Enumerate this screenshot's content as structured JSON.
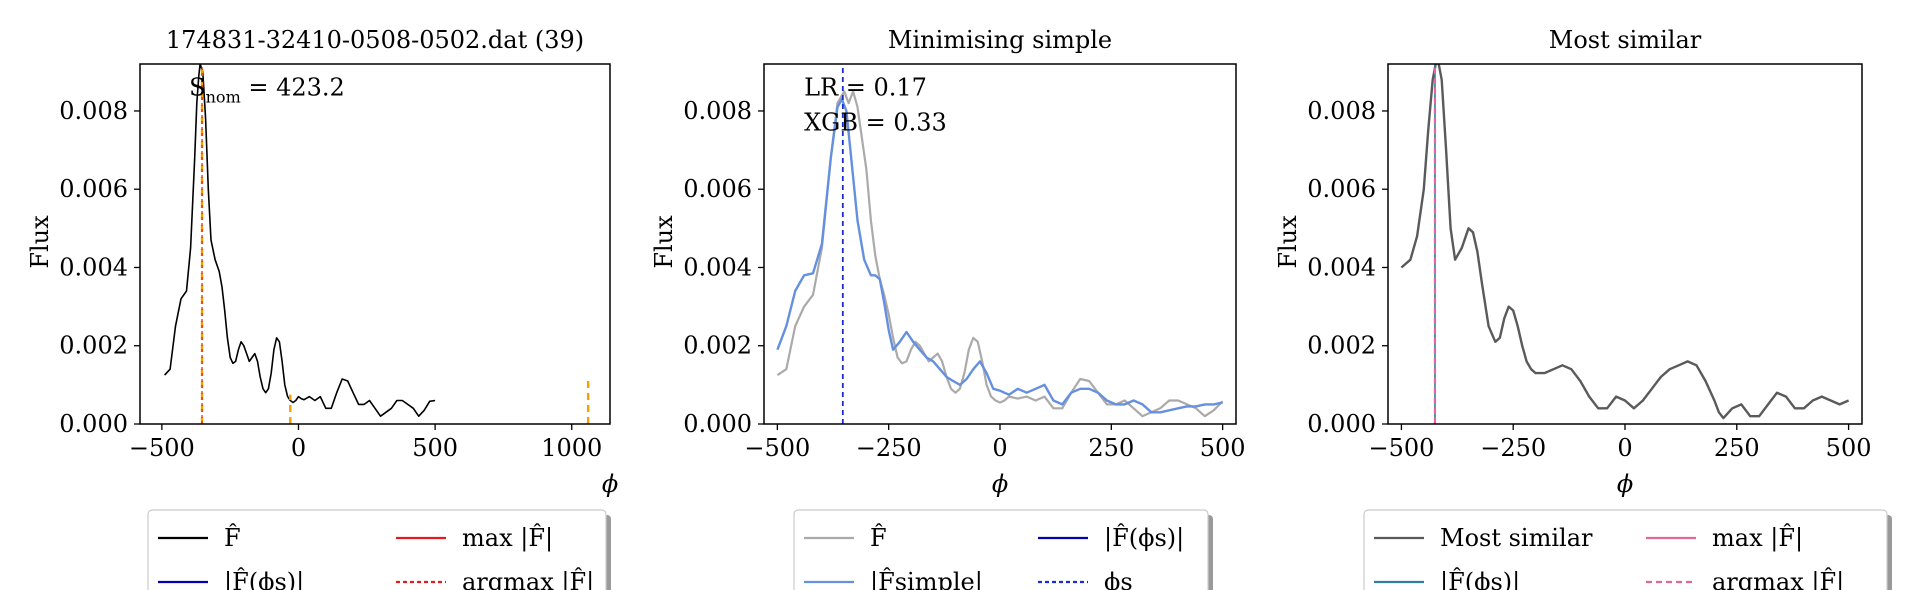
{
  "colors": {
    "black": "#000000",
    "orange": "#f5a000",
    "red": "#e41a1c",
    "navy": "#0000b0",
    "blue_dashed": "#1a2bd6",
    "gray": "#aaaaaa",
    "cornflower": "#6590e0",
    "dark_gray": "#5a5a5a",
    "pink": "#e0679a",
    "teal": "#2f7f9f"
  },
  "chart_data": [
    {
      "type": "line",
      "title": "174831-32410-0508-0502.dat (39)",
      "xlabel": "ϕ",
      "ylabel": "Flux",
      "xlim": [
        -580,
        1140
      ],
      "ylim": [
        0,
        0.0092
      ],
      "xticks": [
        -500,
        0,
        500,
        1000
      ],
      "xtick_labels": [
        "−500",
        "0",
        "500",
        "1000"
      ],
      "yticks": [
        0,
        0.002,
        0.004,
        0.006,
        0.008
      ],
      "ytick_labels": [
        "0.000",
        "0.002",
        "0.004",
        "0.006",
        "0.008"
      ],
      "annotations": [
        {
          "main": "S",
          "sub": "nom",
          "rest": " = 423.2",
          "x": -400,
          "y": 0.0086
        }
      ],
      "series": [
        {
          "name": "F̂",
          "color": "black",
          "width": 1.6,
          "x": [
            -490,
            -470,
            -450,
            -430,
            -410,
            -395,
            -380,
            -372,
            -365,
            -360,
            -350,
            -340,
            -330,
            -320,
            -305,
            -290,
            -280,
            -270,
            -260,
            -250,
            -240,
            -230,
            -220,
            -210,
            -200,
            -190,
            -180,
            -170,
            -160,
            -150,
            -140,
            -130,
            -120,
            -110,
            -100,
            -90,
            -80,
            -70,
            -60,
            -50,
            -40,
            -30,
            -20,
            -10,
            0,
            10,
            20,
            40,
            60,
            80,
            100,
            120,
            140,
            160,
            180,
            200,
            220,
            240,
            260,
            280,
            300,
            320,
            340,
            360,
            380,
            400,
            420,
            440,
            460,
            480,
            500
          ],
          "y": [
            0.00125,
            0.0014,
            0.0025,
            0.0032,
            0.0034,
            0.0045,
            0.0068,
            0.0082,
            0.0089,
            0.0092,
            0.009,
            0.0078,
            0.006,
            0.0047,
            0.0042,
            0.0039,
            0.0035,
            0.0029,
            0.0022,
            0.0017,
            0.00155,
            0.0016,
            0.0019,
            0.0021,
            0.002,
            0.0018,
            0.0016,
            0.0017,
            0.0018,
            0.0016,
            0.0012,
            0.0009,
            0.0008,
            0.0009,
            0.0013,
            0.0019,
            0.0022,
            0.0021,
            0.0016,
            0.001,
            0.0007,
            0.0006,
            0.00055,
            0.0006,
            0.0007,
            0.00065,
            0.00062,
            0.0007,
            0.0006,
            0.0007,
            0.0004,
            0.0004,
            0.0008,
            0.00115,
            0.0011,
            0.0008,
            0.0005,
            0.0005,
            0.0006,
            0.0004,
            0.0002,
            0.0003,
            0.0004,
            0.0006,
            0.0006,
            0.0005,
            0.0004,
            0.0002,
            0.00035,
            0.00058,
            0.0006
          ]
        }
      ],
      "vlines": [
        {
          "x": -353,
          "y0": 0,
          "y1": 0.0092,
          "color": "orange",
          "dash": "7,5",
          "width": 2.4
        },
        {
          "x": -353,
          "y0": 0,
          "y1": 0.0092,
          "color": "red",
          "dash": "3,3",
          "width": 1.2
        },
        {
          "x": -30,
          "y0": 0,
          "y1": 0.00075,
          "color": "orange",
          "dash": "7,5",
          "width": 2.4
        },
        {
          "x": 1060,
          "y0": 0,
          "y1": 0.0011,
          "color": "orange",
          "dash": "7,5",
          "width": 2.4
        }
      ],
      "legend": {
        "position": "below",
        "entries": [
          {
            "label": "F̂",
            "color": "black",
            "dash": ""
          },
          {
            "label": "|F̂(ϕs)|",
            "color": "navy",
            "dash": ""
          },
          {
            "label": "max |F̂|",
            "color": "red",
            "dash": ""
          },
          {
            "label": "argmax |F̂|",
            "color": "red",
            "dash": "4,3"
          }
        ]
      }
    },
    {
      "type": "line",
      "title": "Minimising simple",
      "xlabel": "ϕ",
      "ylabel": "Flux",
      "xlim": [
        -530,
        530
      ],
      "ylim": [
        0,
        0.0092
      ],
      "xticks": [
        -500,
        -250,
        0,
        250,
        500
      ],
      "xtick_labels": [
        "−500",
        "−250",
        "0",
        "250",
        "500"
      ],
      "yticks": [
        0,
        0.002,
        0.004,
        0.006,
        0.008
      ],
      "ytick_labels": [
        "0.000",
        "0.002",
        "0.004",
        "0.006",
        "0.008"
      ],
      "annotations": [
        {
          "main": "LR = 0.17",
          "sub": "",
          "rest": "",
          "x": -440,
          "y": 0.0086
        },
        {
          "main": "XGB = 0.33",
          "sub": "",
          "rest": "",
          "x": -440,
          "y": 0.0077
        }
      ],
      "series": [
        {
          "name": "F̂",
          "color": "gray",
          "width": 2.2,
          "x": [
            -500,
            -480,
            -460,
            -440,
            -420,
            -400,
            -380,
            -365,
            -350,
            -340,
            -330,
            -320,
            -300,
            -290,
            -280,
            -270,
            -260,
            -250,
            -240,
            -230,
            -220,
            -210,
            -200,
            -190,
            -180,
            -170,
            -160,
            -150,
            -140,
            -130,
            -120,
            -110,
            -100,
            -90,
            -80,
            -70,
            -60,
            -50,
            -40,
            -30,
            -20,
            -10,
            0,
            10,
            20,
            40,
            60,
            80,
            100,
            120,
            140,
            160,
            180,
            200,
            220,
            240,
            260,
            280,
            300,
            320,
            340,
            360,
            380,
            400,
            420,
            440,
            460,
            480,
            500
          ],
          "y": [
            0.00125,
            0.0014,
            0.0025,
            0.003,
            0.0033,
            0.0045,
            0.0068,
            0.0082,
            0.0085,
            0.0082,
            0.0085,
            0.0081,
            0.0065,
            0.0052,
            0.0043,
            0.0037,
            0.0033,
            0.0028,
            0.0022,
            0.0017,
            0.00155,
            0.0016,
            0.0019,
            0.0021,
            0.002,
            0.0018,
            0.0016,
            0.0017,
            0.0018,
            0.0016,
            0.0012,
            0.0009,
            0.0008,
            0.0009,
            0.0013,
            0.0019,
            0.0022,
            0.0021,
            0.0016,
            0.001,
            0.0007,
            0.0006,
            0.00055,
            0.0006,
            0.0007,
            0.00065,
            0.0007,
            0.0006,
            0.0007,
            0.0004,
            0.0004,
            0.0008,
            0.00115,
            0.0011,
            0.0008,
            0.0005,
            0.0005,
            0.0006,
            0.0004,
            0.0002,
            0.0003,
            0.0004,
            0.0006,
            0.0006,
            0.0005,
            0.0004,
            0.0002,
            0.00035,
            0.00058
          ]
        },
        {
          "name": "|F̂simple|",
          "color": "cornflower",
          "width": 2.4,
          "x": [
            -500,
            -480,
            -460,
            -440,
            -420,
            -400,
            -380,
            -365,
            -355,
            -345,
            -335,
            -320,
            -305,
            -290,
            -280,
            -270,
            -260,
            -250,
            -240,
            -225,
            -210,
            -195,
            -180,
            -165,
            -150,
            -135,
            -120,
            -105,
            -90,
            -75,
            -60,
            -45,
            -30,
            -15,
            0,
            20,
            40,
            60,
            80,
            100,
            120,
            140,
            160,
            180,
            200,
            220,
            240,
            260,
            280,
            300,
            320,
            340,
            360,
            380,
            400,
            420,
            440,
            460,
            480,
            500
          ],
          "y": [
            0.0019,
            0.0025,
            0.0034,
            0.0038,
            0.00385,
            0.0046,
            0.0068,
            0.0081,
            0.0083,
            0.008,
            0.0069,
            0.0052,
            0.0042,
            0.0038,
            0.0038,
            0.0037,
            0.0031,
            0.0024,
            0.0019,
            0.0021,
            0.00235,
            0.0021,
            0.0019,
            0.0017,
            0.0016,
            0.0014,
            0.0012,
            0.0011,
            0.001,
            0.00115,
            0.0014,
            0.0016,
            0.0013,
            0.0009,
            0.00085,
            0.00075,
            0.0009,
            0.0008,
            0.0009,
            0.001,
            0.0006,
            0.0005,
            0.0008,
            0.0009,
            0.0009,
            0.0008,
            0.0006,
            0.0005,
            0.0005,
            0.0006,
            0.0005,
            0.0003,
            0.0003,
            0.00035,
            0.0004,
            0.00045,
            0.00045,
            0.0005,
            0.0005,
            0.00055
          ]
        }
      ],
      "vlines": [
        {
          "x": -353,
          "y0": 0,
          "y1": 0.0092,
          "color": "blue_dashed",
          "dash": "5,4",
          "width": 1.8
        }
      ],
      "legend": {
        "position": "below",
        "entries": [
          {
            "label": "F̂",
            "color": "gray",
            "dash": ""
          },
          {
            "label": "|F̂simple|",
            "color": "cornflower",
            "dash": ""
          },
          {
            "label": "|F̂(ϕs)|",
            "color": "navy",
            "dash": ""
          },
          {
            "label": "ϕs",
            "color": "blue_dashed",
            "dash": "4,3"
          }
        ]
      }
    },
    {
      "type": "line",
      "title": "Most similar",
      "xlabel": "ϕ",
      "ylabel": "Flux",
      "xlim": [
        -530,
        530
      ],
      "ylim": [
        0,
        0.0092
      ],
      "xticks": [
        -500,
        -250,
        0,
        250,
        500
      ],
      "xtick_labels": [
        "−500",
        "−250",
        "0",
        "250",
        "500"
      ],
      "yticks": [
        0,
        0.002,
        0.004,
        0.006,
        0.008
      ],
      "ytick_labels": [
        "0.000",
        "0.002",
        "0.004",
        "0.006",
        "0.008"
      ],
      "annotations": [],
      "series": [
        {
          "name": "Most similar",
          "color": "dark_gray",
          "width": 2.4,
          "x": [
            -500,
            -480,
            -465,
            -450,
            -440,
            -430,
            -420,
            -410,
            -400,
            -390,
            -380,
            -365,
            -350,
            -340,
            -330,
            -320,
            -305,
            -290,
            -280,
            -270,
            -260,
            -250,
            -240,
            -230,
            -220,
            -210,
            -200,
            -180,
            -160,
            -140,
            -120,
            -100,
            -80,
            -60,
            -40,
            -20,
            0,
            20,
            40,
            60,
            80,
            100,
            120,
            140,
            160,
            180,
            200,
            210,
            220,
            240,
            260,
            280,
            300,
            320,
            340,
            360,
            380,
            400,
            420,
            440,
            460,
            480,
            500
          ],
          "y": [
            0.004,
            0.0042,
            0.0048,
            0.006,
            0.0075,
            0.0088,
            0.0094,
            0.0088,
            0.007,
            0.005,
            0.0042,
            0.0045,
            0.005,
            0.0049,
            0.0044,
            0.0036,
            0.0025,
            0.0021,
            0.0022,
            0.0027,
            0.003,
            0.0029,
            0.0025,
            0.002,
            0.0016,
            0.0014,
            0.0013,
            0.0013,
            0.0014,
            0.0015,
            0.0014,
            0.0011,
            0.0007,
            0.0004,
            0.0004,
            0.0007,
            0.0006,
            0.0004,
            0.0006,
            0.0009,
            0.0012,
            0.0014,
            0.0015,
            0.0016,
            0.0015,
            0.0011,
            0.0006,
            0.0003,
            0.00015,
            0.0004,
            0.0005,
            0.0002,
            0.0002,
            0.0005,
            0.0008,
            0.0007,
            0.0004,
            0.0004,
            0.0006,
            0.0007,
            0.0006,
            0.0005,
            0.0006
          ]
        }
      ],
      "vlines": [
        {
          "x": -425,
          "y0": 0,
          "y1": 0.0092,
          "color": "teal",
          "dash": "",
          "width": 1.6
        },
        {
          "x": -425,
          "y0": 0,
          "y1": 0.0092,
          "color": "pink",
          "dash": "6,4",
          "width": 2.2
        }
      ],
      "legend": {
        "position": "below",
        "entries": [
          {
            "label": "Most similar",
            "color": "dark_gray",
            "dash": ""
          },
          {
            "label": "|F̂(ϕs)|",
            "color": "teal",
            "dash": ""
          },
          {
            "label": "max |F̂|",
            "color": "pink",
            "dash": ""
          },
          {
            "label": "argmax |F̂|",
            "color": "pink",
            "dash": "6,4"
          }
        ]
      }
    }
  ]
}
